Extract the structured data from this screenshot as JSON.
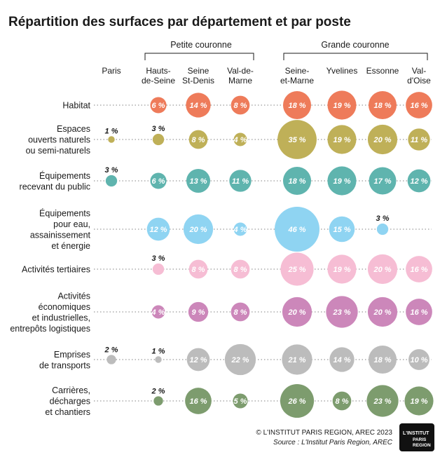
{
  "chart_data": {
    "type": "bubble-matrix",
    "title": "Répartition des surfaces par département et par poste",
    "groups": [
      {
        "name": "Petite couronne",
        "columns": [
          "Hauts-de-Seine",
          "Seine St-Denis",
          "Val-de-Marne"
        ]
      },
      {
        "name": "Grande couronne",
        "columns": [
          "Seine-et-Marne",
          "Yvelines",
          "Essonne",
          "Val-d'Oise"
        ]
      }
    ],
    "columns": [
      {
        "lines": [
          "Paris"
        ]
      },
      {
        "lines": [
          "Hauts-",
          "de-Seine"
        ]
      },
      {
        "lines": [
          "Seine",
          "St-Denis"
        ]
      },
      {
        "lines": [
          "Val-de-",
          "Marne"
        ]
      },
      {
        "lines": [
          "Seine-",
          "et-Marne"
        ]
      },
      {
        "lines": [
          "Yvelines"
        ]
      },
      {
        "lines": [
          "Essonne"
        ]
      },
      {
        "lines": [
          "Val-",
          "d'Oise"
        ]
      }
    ],
    "unit": "%",
    "rows": [
      {
        "lines": [
          "Habitat"
        ],
        "color": "#ee7b5a",
        "values": [
          null,
          6,
          14,
          8,
          18,
          19,
          18,
          16
        ]
      },
      {
        "lines": [
          "Espaces",
          "ouverts naturels",
          "ou semi-naturels"
        ],
        "color": "#bfb058",
        "values": [
          1,
          3,
          8,
          4,
          35,
          19,
          20,
          11
        ]
      },
      {
        "lines": [
          "Équipements",
          "recevant du public"
        ],
        "color": "#5fb4ae",
        "values": [
          3,
          6,
          13,
          11,
          18,
          19,
          17,
          12
        ]
      },
      {
        "lines": [
          "Équipements",
          "pour eau,",
          "assainissement",
          "et énergie"
        ],
        "color": "#8fd4f2",
        "values": [
          null,
          12,
          20,
          4,
          46,
          15,
          3,
          null
        ]
      },
      {
        "lines": [
          "Activités tertiaires"
        ],
        "color": "#f6bdd4",
        "values": [
          null,
          3,
          8,
          8,
          25,
          19,
          20,
          16
        ]
      },
      {
        "lines": [
          "Activités",
          "économiques",
          "et industrielles,",
          "entrepôts logistiques"
        ],
        "color": "#cc87ba",
        "values": [
          null,
          4,
          9,
          8,
          20,
          23,
          20,
          16
        ]
      },
      {
        "lines": [
          "Emprises",
          "de transports"
        ],
        "color": "#bcbcbc",
        "values": [
          2,
          1,
          12,
          22,
          21,
          14,
          18,
          10
        ]
      },
      {
        "lines": [
          "Carrières,",
          "décharges",
          "et chantiers"
        ],
        "color": "#7d9c6e",
        "values": [
          null,
          2,
          16,
          5,
          26,
          8,
          23,
          19
        ]
      }
    ]
  },
  "footer": {
    "credit": "© L'INSTITUT PARIS REGION, AREC 2023",
    "source": "Source : L'Institut Paris Region, AREC"
  },
  "logo": {
    "line1": "L'INSTITUT",
    "line2": "PARIS",
    "line3": "REGION"
  },
  "colors": {
    "label_dark": "#1a1a1a",
    "label_light": "#ffffff",
    "dots": "#9a9a9a"
  }
}
